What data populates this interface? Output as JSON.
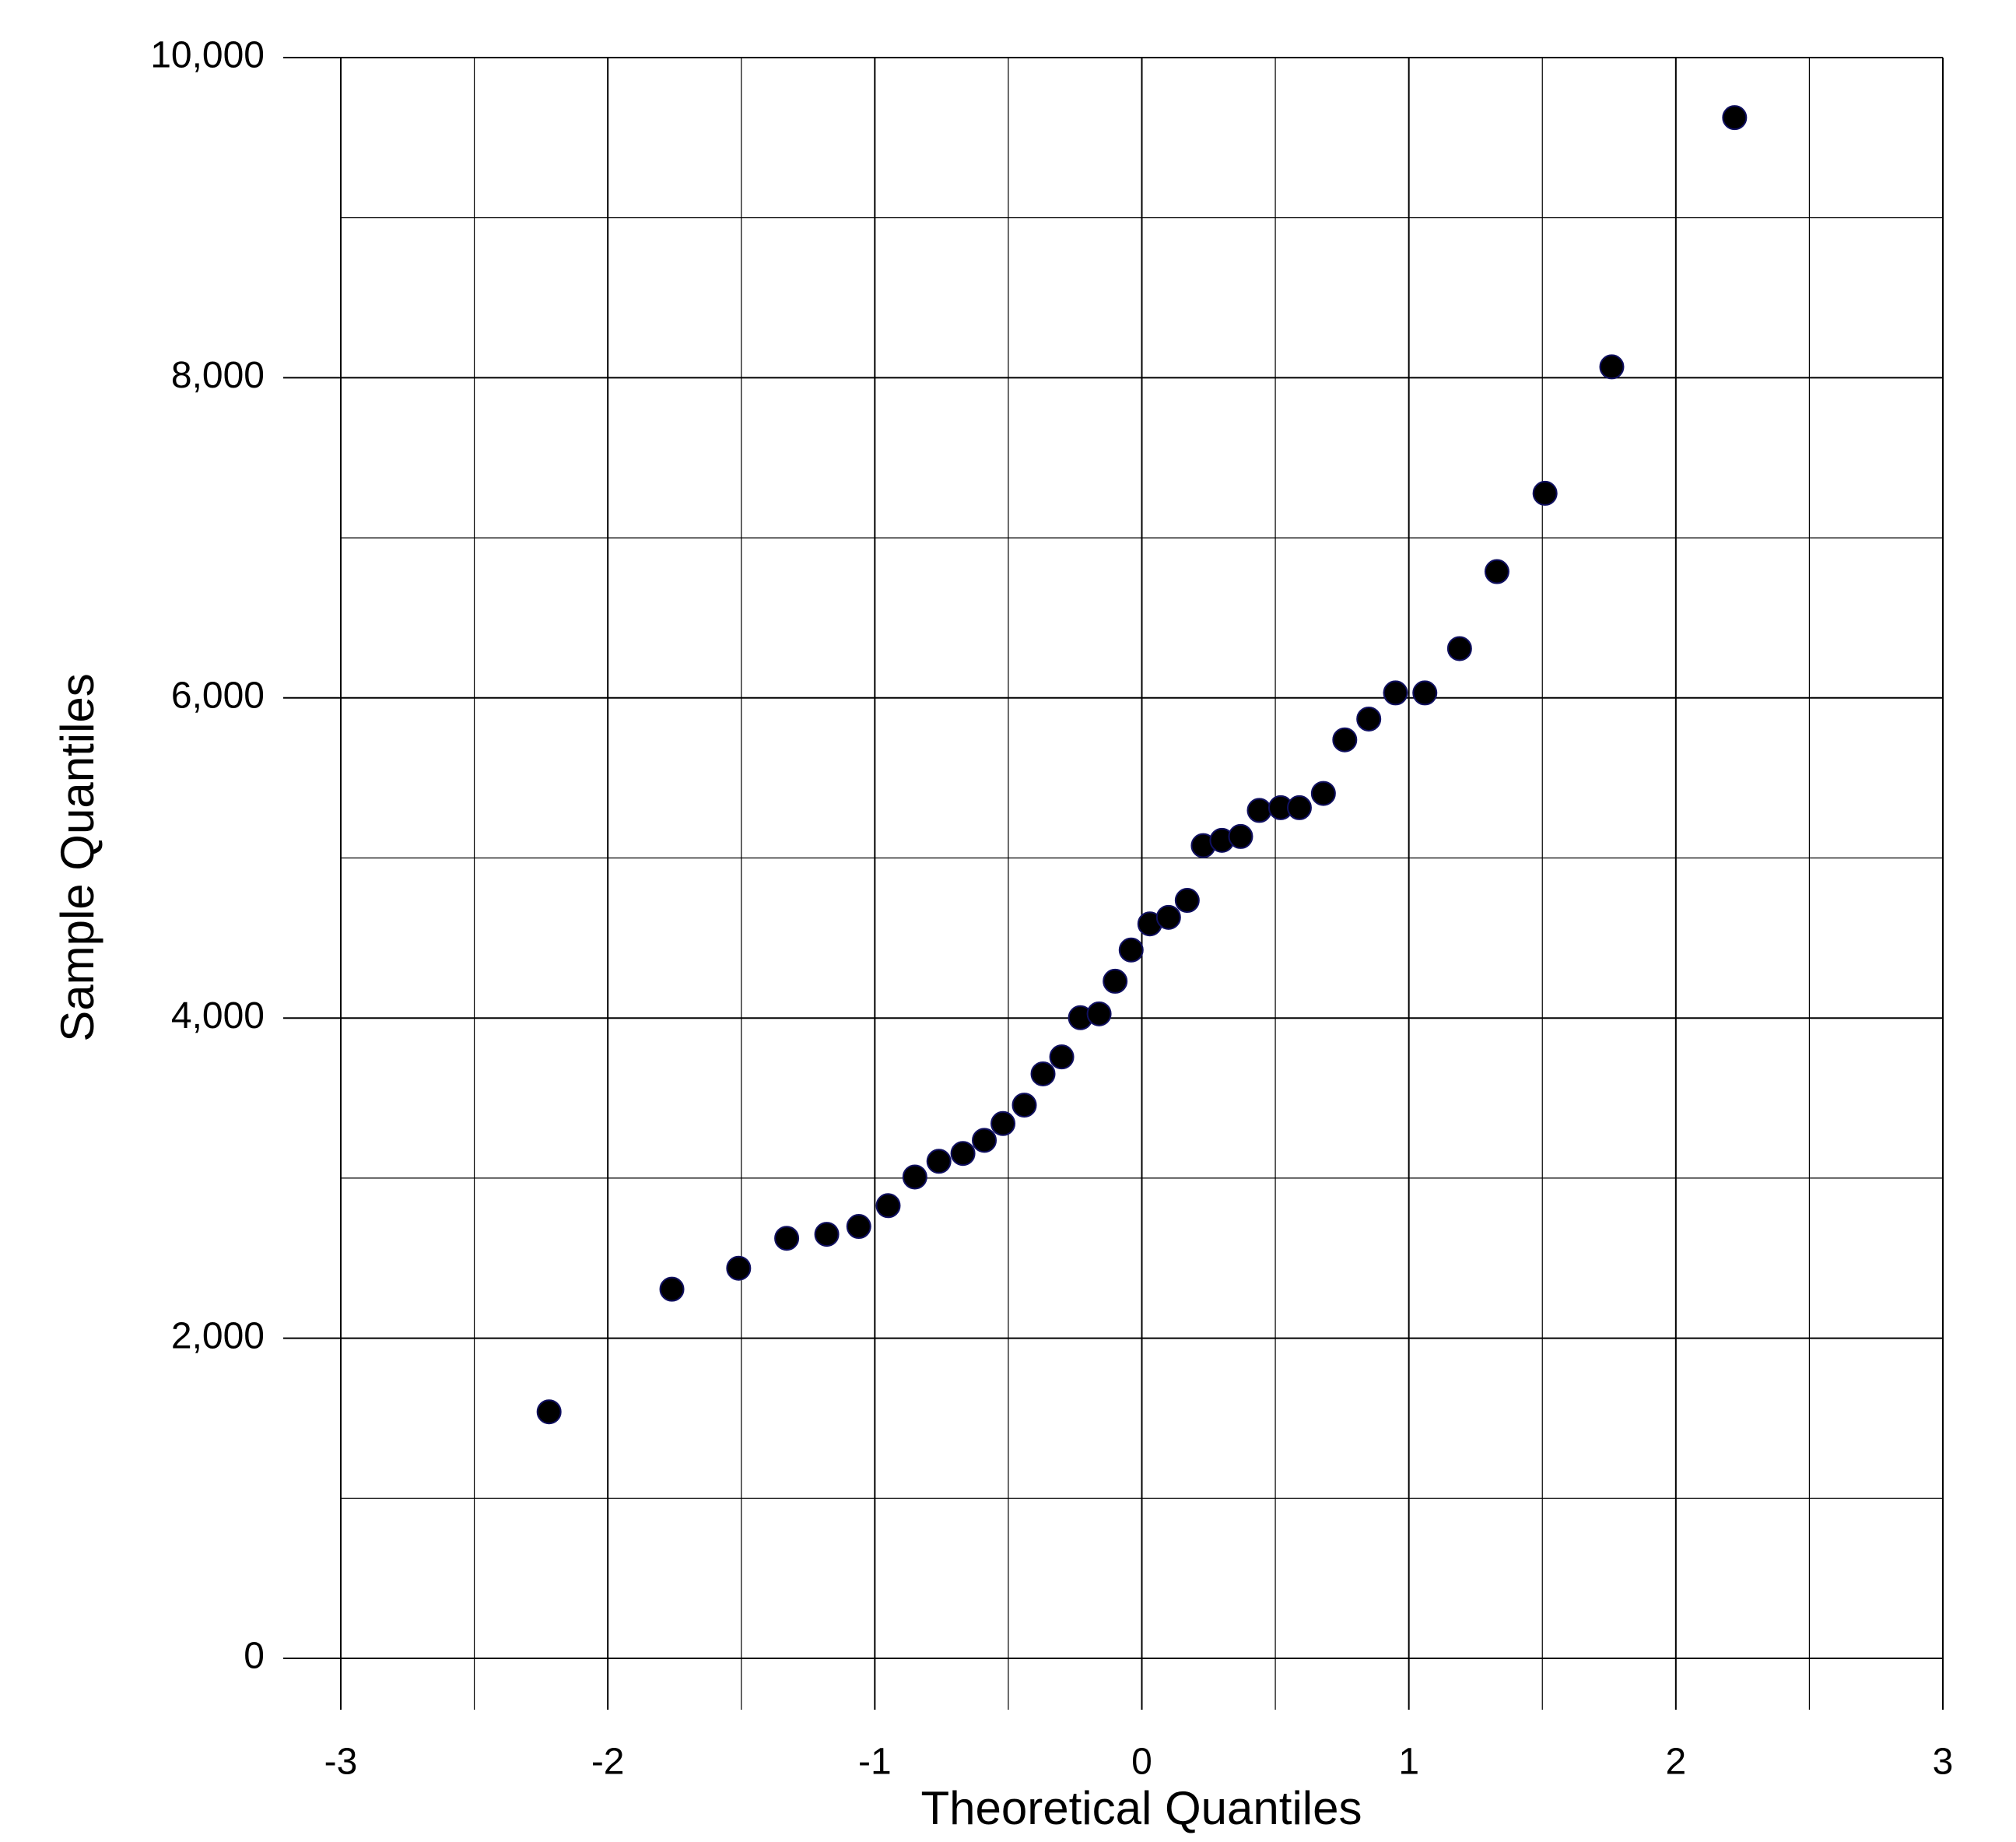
{
  "chart_data": {
    "type": "scatter",
    "x_label": "Theoretical Quantiles",
    "y_label": "Sample Quantiles",
    "grid": true,
    "color": "#000000",
    "xlim": [
      -3,
      3
    ],
    "ylim": [
      0,
      10000
    ],
    "xticks": [
      -3,
      -2,
      -1,
      0,
      1,
      2,
      3
    ],
    "xminor_ticks": [
      -2.5,
      -1.5,
      -0.5,
      0.5,
      1.5,
      2.5
    ],
    "yticks": [
      0,
      {
        "value": 2000,
        "label": "2,000"
      },
      {
        "value": 4000,
        "label": "4,000"
      },
      {
        "value": 6000,
        "label": "6,000"
      },
      {
        "value": 8000,
        "label": "8,000"
      },
      {
        "value": 10000,
        "label": "10,000"
      }
    ],
    "yminor_ticks": [
      1000,
      3000,
      5000,
      7000,
      9000
    ],
    "x": [
      -2.22,
      -1.76,
      -1.51,
      -1.33,
      -1.18,
      -1.06,
      -0.95,
      -0.85,
      -0.76,
      -0.67,
      -0.59,
      -0.52,
      -0.44,
      -0.37,
      -0.3,
      -0.23,
      -0.16,
      -0.1,
      -0.04,
      0.03,
      0.1,
      0.17,
      0.23,
      0.3,
      0.37,
      0.44,
      0.52,
      0.59,
      0.68,
      0.76,
      0.85,
      0.95,
      1.06,
      1.19,
      1.33,
      1.51,
      1.76,
      2.22
    ],
    "values": [
      1540,
      2306,
      2437,
      2624,
      2649,
      2698,
      2828,
      3007,
      3105,
      3154,
      3236,
      3341,
      3456,
      3651,
      3757,
      4002,
      4026,
      4230,
      4425,
      4588,
      4629,
      4735,
      5077,
      5110,
      5134,
      5297,
      5314,
      5314,
      5403,
      5738,
      5868,
      6031,
      6031,
      6308,
      6789,
      7278,
      8068,
      9625
    ]
  }
}
